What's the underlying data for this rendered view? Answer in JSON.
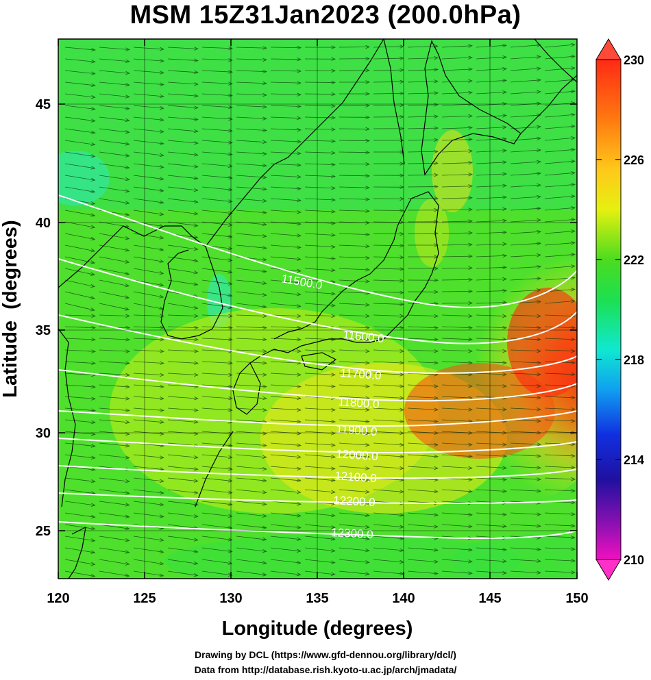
{
  "title": "MSM 15Z31Jan2023 (200.0hPa)",
  "xaxis": {
    "label": "Longitude (degrees)",
    "ticks": [
      "120",
      "125",
      "130",
      "135",
      "140",
      "145",
      "150"
    ]
  },
  "yaxis": {
    "label": "Latitude  (degrees)",
    "ticks": [
      "25",
      "30",
      "35",
      "40",
      "45"
    ]
  },
  "colorbar": {
    "labels": [
      "230",
      "226",
      "222",
      "218",
      "214",
      "210"
    ]
  },
  "contour_labels": [
    "11500.0",
    "11600.0",
    "11700.0",
    "11800.0",
    "11900.0",
    "12000.0",
    "12100.0",
    "12200.0",
    "12300.0"
  ],
  "credits": [
    "Drawing by DCL (https://www.gfd-dennou.org/library/dcl/)",
    "Data from http://database.rish.kyoto-u.ac.jp/arch/jmadata/"
  ],
  "chart_data": {
    "type": "heatmap",
    "title": "MSM 15Z31Jan2023 (200.0hPa)",
    "xlabel": "Longitude (degrees)",
    "ylabel": "Latitude  (degrees)",
    "xlim": [
      120,
      150
    ],
    "ylim": [
      22.4,
      47.6
    ],
    "xticks": [
      120,
      125,
      130,
      135,
      140,
      145,
      150
    ],
    "yticks": [
      25,
      30,
      35,
      40,
      45
    ],
    "colorbar_range": [
      210,
      230
    ],
    "colorbar_ticks": [
      210,
      214,
      218,
      222,
      226,
      230
    ],
    "grid": true,
    "contours": [
      {
        "label": "11500.0",
        "value": 11500
      },
      {
        "label": "11600.0",
        "value": 11600
      },
      {
        "label": "11700.0",
        "value": 11700
      },
      {
        "label": "11800.0",
        "value": 11800
      },
      {
        "label": "11900.0",
        "value": 11900
      },
      {
        "label": "12000.0",
        "value": 12000
      },
      {
        "label": "12100.0",
        "value": 12100
      },
      {
        "label": "12200.0",
        "value": 12200
      },
      {
        "label": "12300.0",
        "value": 12300
      }
    ]
  }
}
